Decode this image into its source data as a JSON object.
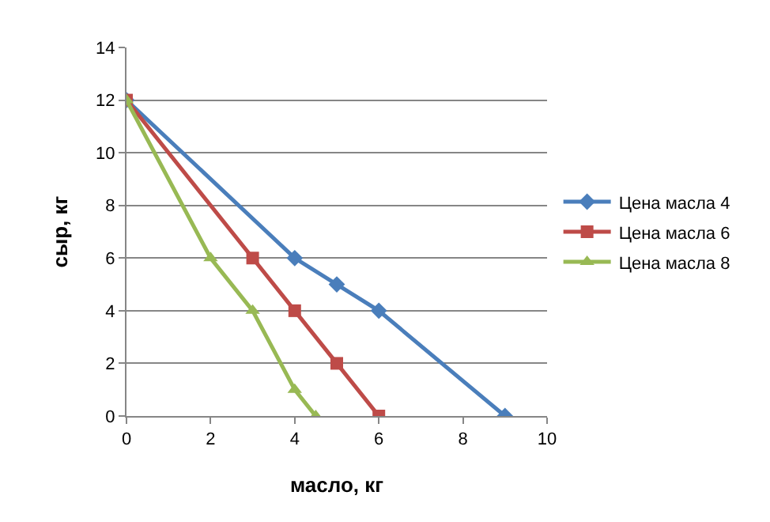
{
  "chart_data": {
    "type": "line",
    "xlabel": "масло, кг",
    "ylabel": "сыр, кг",
    "xlim": [
      0,
      10
    ],
    "xticks": [
      0,
      2,
      4,
      6,
      8,
      10
    ],
    "ylim": [
      0,
      14
    ],
    "yticks": [
      0,
      2,
      4,
      6,
      8,
      10,
      12,
      14
    ],
    "grid": "y",
    "legend": "right",
    "series": [
      {
        "name": "Цена масла 4",
        "color": "#4a7ebb",
        "marker": "diamond",
        "x": [
          0,
          4,
          5,
          6,
          9
        ],
        "values": [
          12,
          6,
          5,
          4,
          0
        ]
      },
      {
        "name": "Цена масла 6",
        "color": "#be4b48",
        "marker": "square",
        "x": [
          0,
          3,
          4,
          5,
          6
        ],
        "values": [
          12,
          6,
          4,
          2,
          0
        ]
      },
      {
        "name": "Цена масла 8",
        "color": "#98b954",
        "marker": "triangle",
        "x": [
          0,
          2,
          3,
          4,
          4.5
        ],
        "values": [
          12,
          6,
          4,
          1,
          0
        ]
      }
    ]
  }
}
